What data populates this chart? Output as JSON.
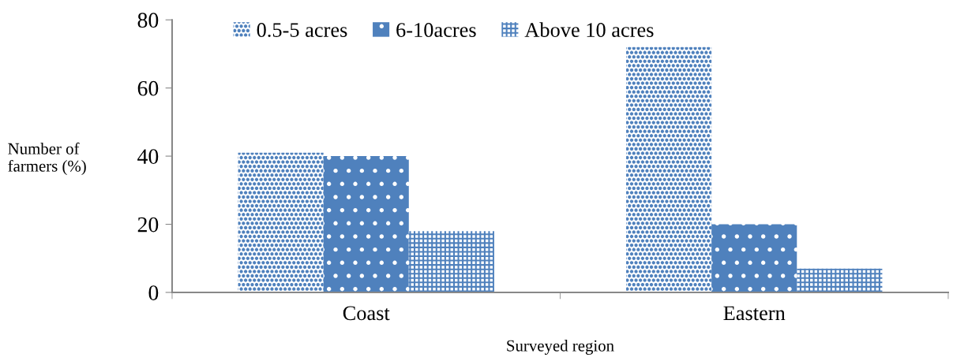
{
  "chart_data": {
    "type": "bar",
    "xlabel": "Surveyed region",
    "ylabel": "Number of farmers (%)",
    "categories": [
      "Coast",
      "Eastern"
    ],
    "series": [
      {
        "name": "0.5-5 acres",
        "color": "#4f81bd",
        "values": [
          41,
          72
        ]
      },
      {
        "name": "6-10acres",
        "color": "#4f81bd",
        "values": [
          40,
          20
        ]
      },
      {
        "name": "Above 10 acres",
        "color": "#4f81bd",
        "values": [
          18,
          7
        ]
      }
    ],
    "ylim": [
      0,
      80
    ],
    "yticks": [
      0,
      20,
      40,
      60,
      80
    ],
    "grid": false,
    "legend": "top"
  }
}
